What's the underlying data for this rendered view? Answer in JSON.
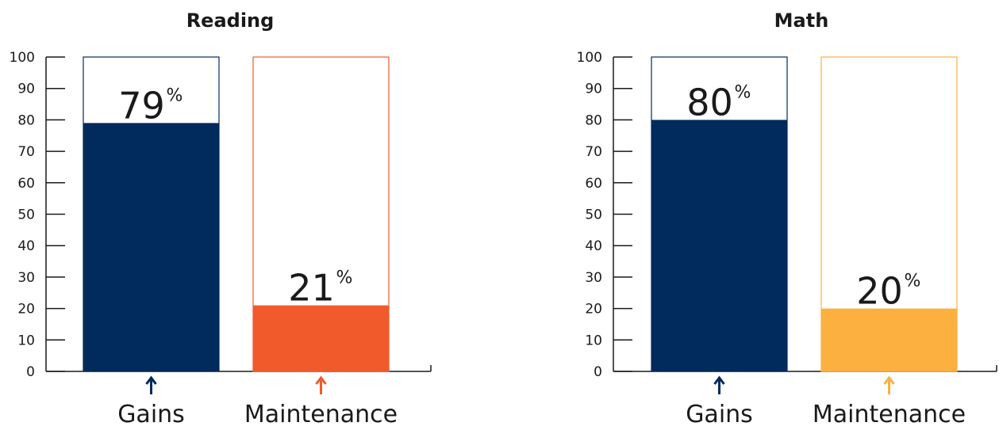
{
  "chart_data": [
    {
      "type": "bar",
      "title": "Reading",
      "categories": [
        "Gains",
        "Maintenance"
      ],
      "values": [
        79,
        21
      ],
      "value_labels": [
        "79",
        "21"
      ],
      "value_suffix": "%",
      "colors": [
        "#002B5C",
        "#F15A2B"
      ],
      "ylim": [
        0,
        100
      ],
      "yticks": [
        0,
        10,
        20,
        30,
        40,
        50,
        60,
        70,
        80,
        90,
        100
      ],
      "xlabel": "",
      "ylabel": "",
      "grid": false,
      "arrow_icon": "up-arrow-icon"
    },
    {
      "type": "bar",
      "title": "Math",
      "categories": [
        "Gains",
        "Maintenance"
      ],
      "values": [
        80,
        20
      ],
      "value_labels": [
        "80",
        "20"
      ],
      "value_suffix": "%",
      "colors": [
        "#002B5C",
        "#FBB040"
      ],
      "ylim": [
        0,
        100
      ],
      "yticks": [
        0,
        10,
        20,
        30,
        40,
        50,
        60,
        70,
        80,
        90,
        100
      ],
      "xlabel": "",
      "ylabel": "",
      "grid": false,
      "arrow_icon": "up-arrow-icon"
    }
  ]
}
